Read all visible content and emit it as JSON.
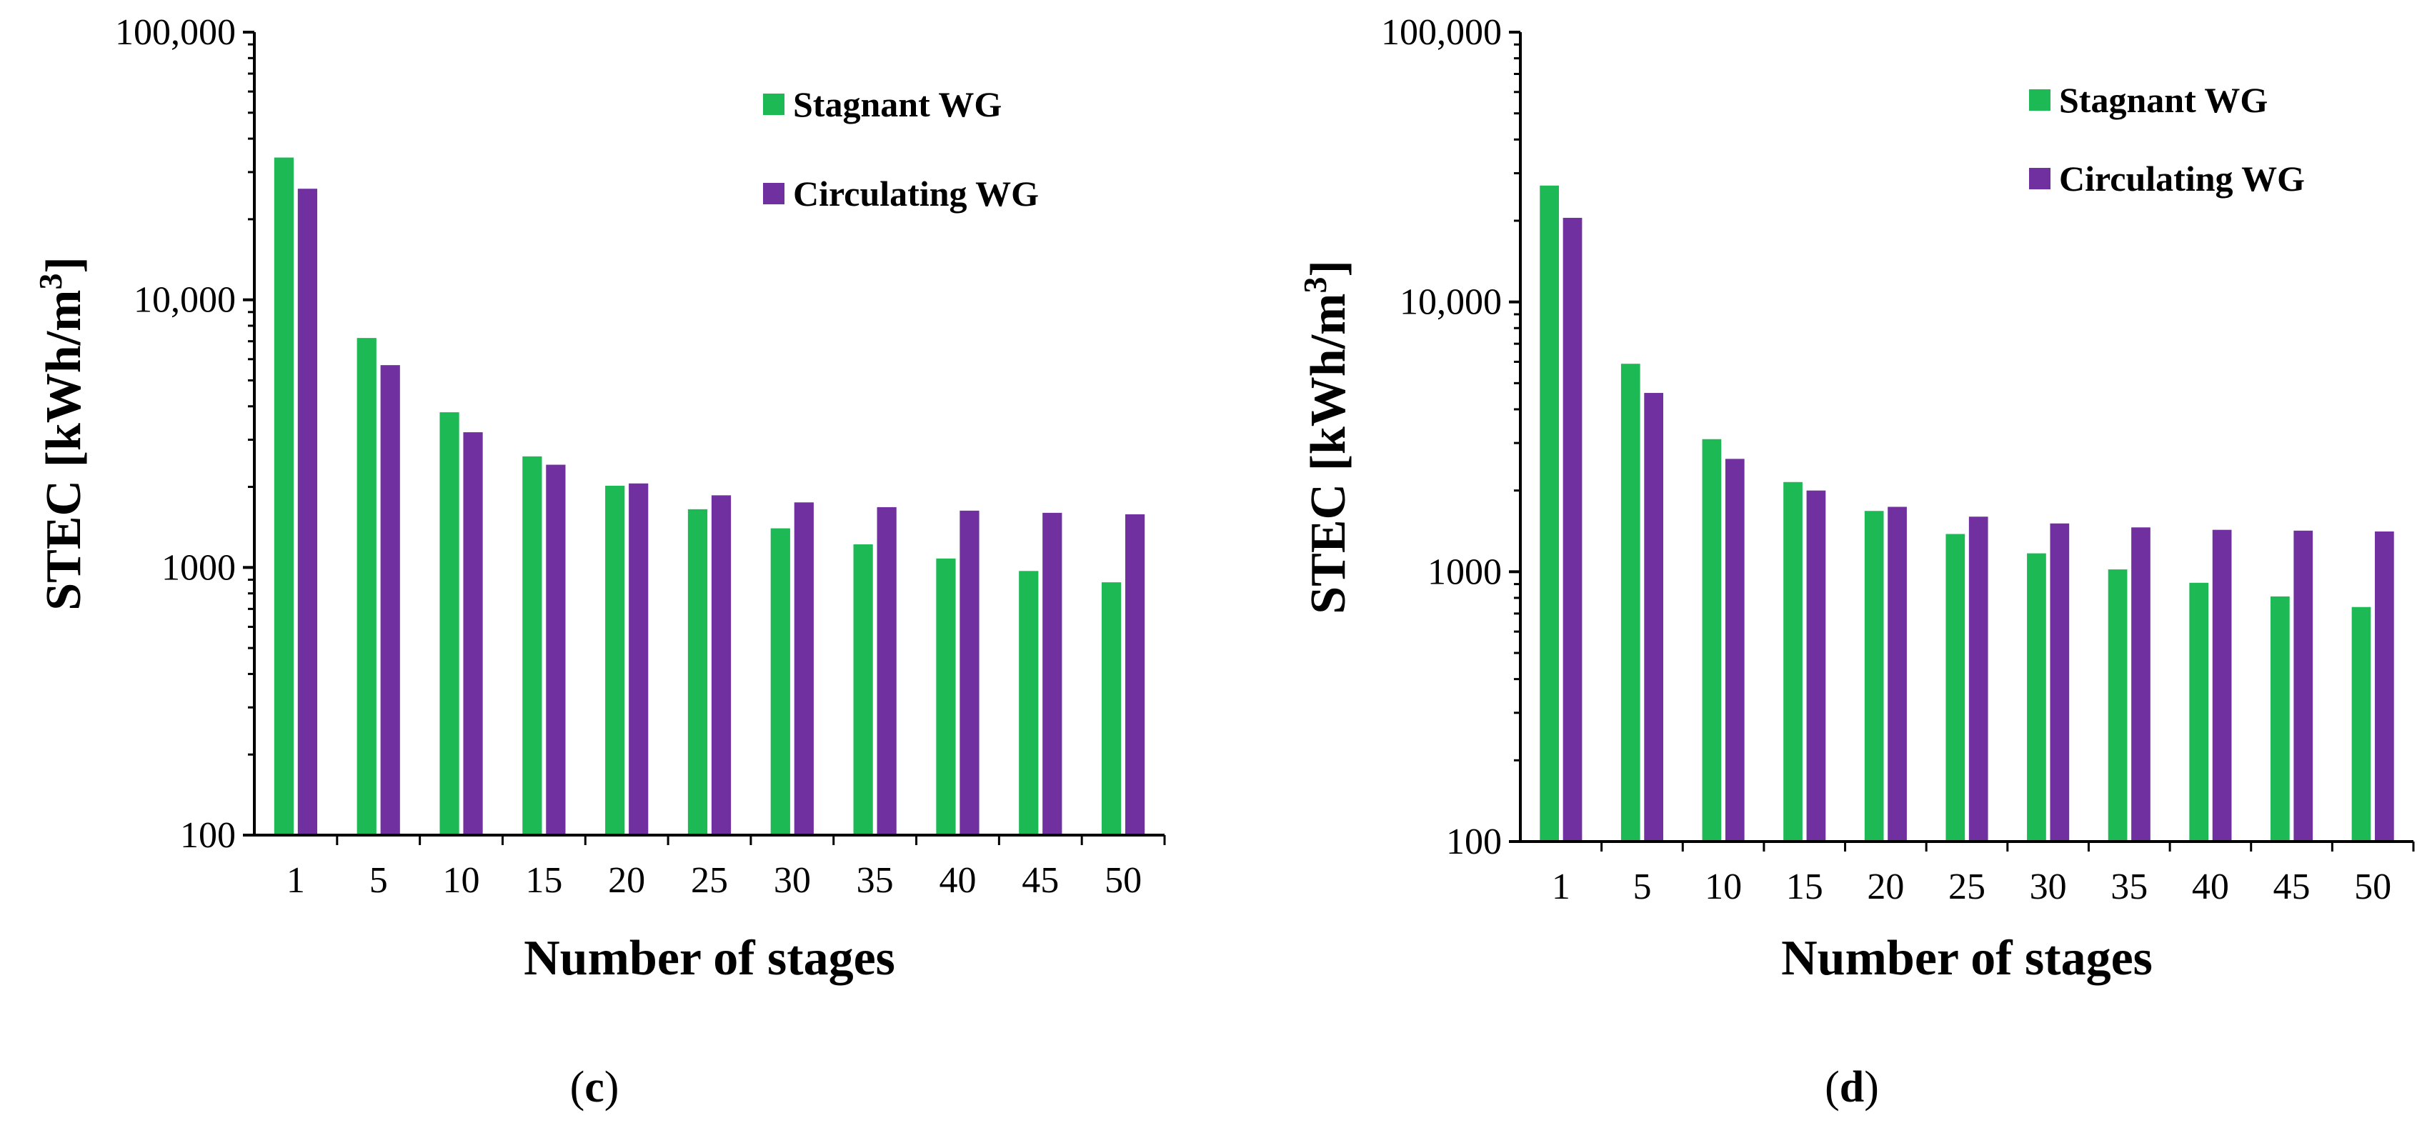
{
  "figure": {
    "panels": [
      {
        "label_open": "(",
        "label_letter": "c",
        "label_close": ")"
      },
      {
        "label_open": "(",
        "label_letter": "d",
        "label_close": ")"
      }
    ]
  },
  "colors": {
    "stagnant": "#1db954",
    "circulating": "#7030a0"
  },
  "chart_data": [
    {
      "type": "bar",
      "panel": "(c)",
      "title": "",
      "xlabel": "Number of stages",
      "ylabel_main": "STEC [kWh/m",
      "ylabel_sup": "3",
      "ylabel_end": "]",
      "yscale": "log",
      "ylim": [
        100,
        100000
      ],
      "yticks": [
        100,
        1000,
        10000,
        100000
      ],
      "ytick_labels": [
        "100",
        "1000",
        "10,000",
        "100,000"
      ],
      "categories": [
        "1",
        "5",
        "10",
        "15",
        "20",
        "25",
        "30",
        "35",
        "40",
        "45",
        "50"
      ],
      "series": [
        {
          "name": "Stagnant WG",
          "color": "#1db954",
          "values": [
            34000,
            7200,
            3800,
            2600,
            2020,
            1650,
            1400,
            1220,
            1080,
            970,
            880
          ]
        },
        {
          "name": "Circulating WG",
          "color": "#7030a0",
          "values": [
            26000,
            5700,
            3200,
            2420,
            2060,
            1860,
            1750,
            1680,
            1630,
            1600,
            1580
          ]
        }
      ],
      "legend": "top-right"
    },
    {
      "type": "bar",
      "panel": "(d)",
      "title": "",
      "xlabel": "Number of stages",
      "ylabel_main": "STEC [kWh/m",
      "ylabel_sup": "3",
      "ylabel_end": "]",
      "yscale": "log",
      "ylim": [
        100,
        100000
      ],
      "yticks": [
        100,
        1000,
        10000,
        100000
      ],
      "ytick_labels": [
        "100",
        "1000",
        "10,000",
        "100,000"
      ],
      "categories": [
        "1",
        "5",
        "10",
        "15",
        "20",
        "25",
        "30",
        "35",
        "40",
        "45",
        "50"
      ],
      "series": [
        {
          "name": "Stagnant WG",
          "color": "#1db954",
          "values": [
            27000,
            5900,
            3100,
            2150,
            1680,
            1380,
            1170,
            1020,
            910,
            810,
            740
          ]
        },
        {
          "name": "Circulating WG",
          "color": "#7030a0",
          "values": [
            20500,
            4600,
            2620,
            2000,
            1740,
            1600,
            1510,
            1460,
            1430,
            1420,
            1410
          ]
        }
      ],
      "legend": "top-right"
    }
  ]
}
